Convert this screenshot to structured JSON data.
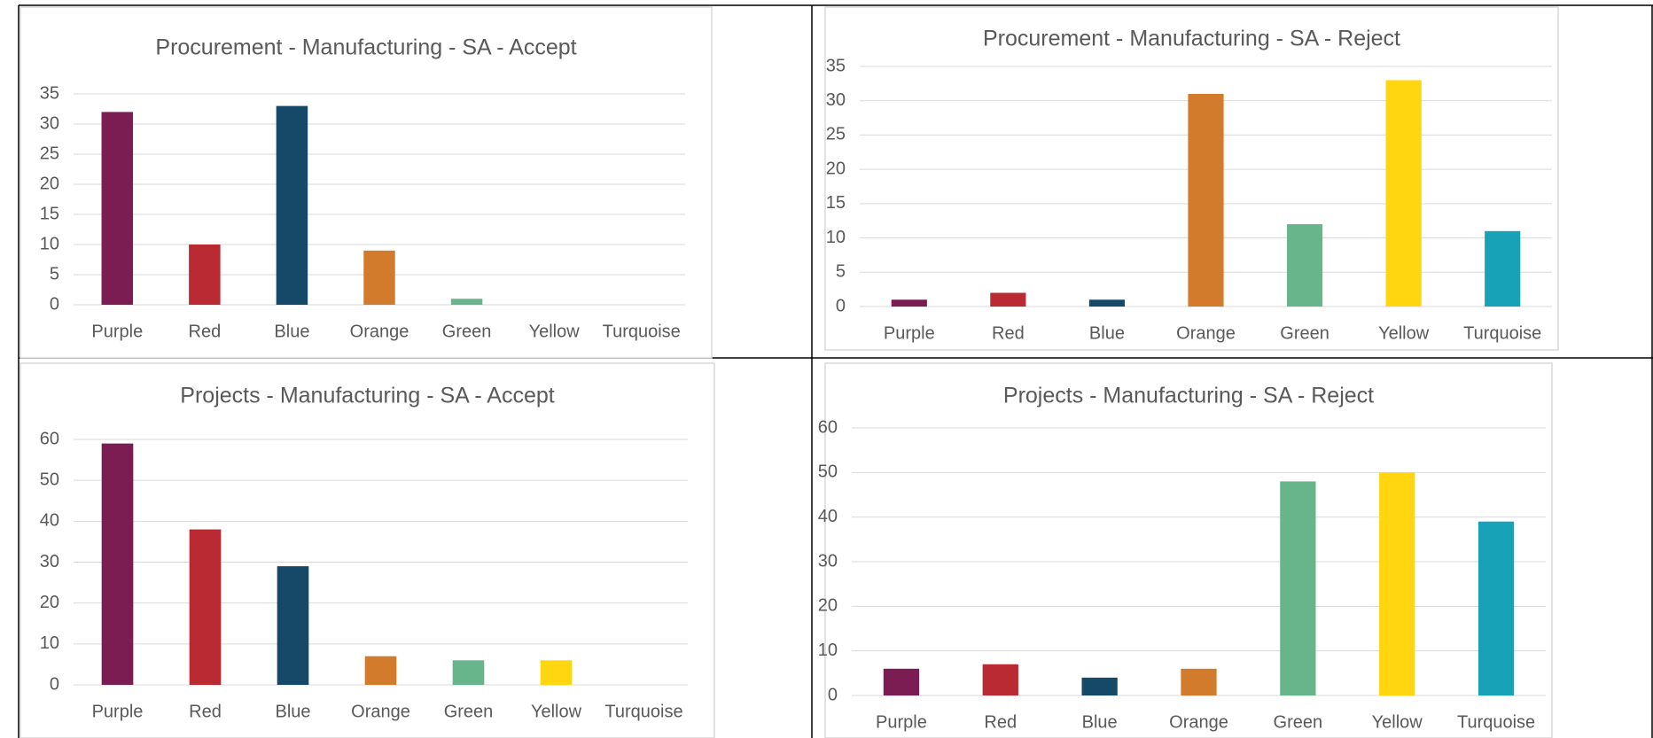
{
  "chart_data": [
    {
      "type": "bar",
      "title": "Procurement - Manufacturing - SA - Accept",
      "categories": [
        "Purple",
        "Red",
        "Blue",
        "Orange",
        "Green",
        "Yellow",
        "Turquoise"
      ],
      "values": [
        32,
        10,
        33,
        9,
        1,
        0,
        0
      ],
      "colors": [
        "#7b1c52",
        "#ba2a33",
        "#164867",
        "#d27b2c",
        "#68b58b",
        "#ffd60f",
        "#18a2b8"
      ],
      "ylim": [
        0,
        35
      ],
      "yticks": [
        0,
        5,
        10,
        15,
        20,
        25,
        30,
        35
      ],
      "grid": true
    },
    {
      "type": "bar",
      "title": "Procurement - Manufacturing - SA - Reject",
      "categories": [
        "Purple",
        "Red",
        "Blue",
        "Orange",
        "Green",
        "Yellow",
        "Turquoise"
      ],
      "values": [
        1,
        2,
        1,
        31,
        12,
        33,
        11
      ],
      "colors": [
        "#7b1c52",
        "#ba2a33",
        "#164867",
        "#d27b2c",
        "#68b58b",
        "#ffd60f",
        "#18a2b8"
      ],
      "ylim": [
        0,
        35
      ],
      "yticks": [
        0,
        5,
        10,
        15,
        20,
        25,
        30,
        35
      ],
      "grid": true
    },
    {
      "type": "bar",
      "title": "Projects - Manufacturing - SA - Accept",
      "categories": [
        "Purple",
        "Red",
        "Blue",
        "Orange",
        "Green",
        "Yellow",
        "Turquoise"
      ],
      "values": [
        59,
        38,
        29,
        7,
        6,
        6,
        0
      ],
      "colors": [
        "#7b1c52",
        "#ba2a33",
        "#164867",
        "#d27b2c",
        "#68b58b",
        "#ffd60f",
        "#18a2b8"
      ],
      "ylim": [
        0,
        60
      ],
      "yticks": [
        0,
        10,
        20,
        30,
        40,
        50,
        60
      ],
      "grid": true
    },
    {
      "type": "bar",
      "title": "Projects - Manufacturing - SA - Reject",
      "categories": [
        "Purple",
        "Red",
        "Blue",
        "Orange",
        "Green",
        "Yellow",
        "Turquoise"
      ],
      "values": [
        6,
        7,
        4,
        6,
        48,
        50,
        39
      ],
      "colors": [
        "#7b1c52",
        "#ba2a33",
        "#164867",
        "#d27b2c",
        "#68b58b",
        "#ffd60f",
        "#18a2b8"
      ],
      "ylim": [
        0,
        60
      ],
      "yticks": [
        0,
        10,
        20,
        30,
        40,
        50,
        60
      ],
      "grid": true
    }
  ]
}
